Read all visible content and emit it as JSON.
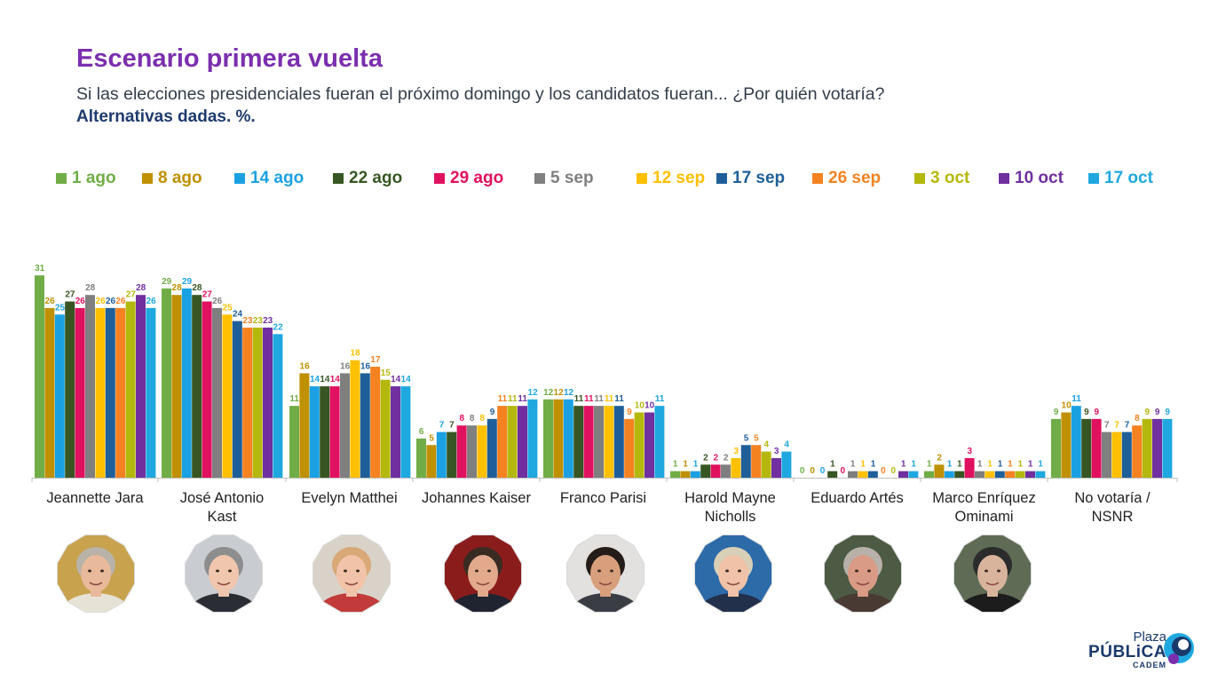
{
  "header": {
    "title": "Escenario primera vuelta",
    "subtitle": "Si las elecciones presidenciales fueran el próximo domingo y los candidatos fueran... ¿Por quién votaría?",
    "note": "Alternativas dadas. %."
  },
  "logo": {
    "line1": "Plaza",
    "line2": "PÚBLiCA",
    "line3": "CADEM"
  },
  "chart_data": {
    "type": "bar",
    "categories": [
      "Jeannette Jara",
      "José Antonio Kast",
      "Evelyn Matthei",
      "Johannes Kaiser",
      "Franco Parisi",
      "Harold Mayne Nicholls",
      "Eduardo Artés",
      "Marco Enríquez Ominami",
      "No votaría / NSNR"
    ],
    "category_lines": [
      [
        "Jeannette Jara"
      ],
      [
        "José Antonio",
        "Kast"
      ],
      [
        "Evelyn Matthei"
      ],
      [
        "Johannes Kaiser"
      ],
      [
        "Franco Parisi"
      ],
      [
        "Harold Mayne",
        "Nicholls"
      ],
      [
        "Eduardo Artés"
      ],
      [
        "Marco Enríquez",
        "Ominami"
      ],
      [
        "No votaría /",
        "NSNR"
      ]
    ],
    "series": [
      {
        "name": "1 ago",
        "color": "#70ad47",
        "values": [
          31,
          29,
          11,
          6,
          12,
          1,
          0,
          1,
          9
        ]
      },
      {
        "name": "8 ago",
        "color": "#bf9000",
        "values": [
          26,
          28,
          16,
          5,
          12,
          1,
          0,
          2,
          10
        ]
      },
      {
        "name": "14 ago",
        "color": "#1ba1e2",
        "values": [
          25,
          29,
          14,
          7,
          12,
          1,
          0,
          1,
          11
        ]
      },
      {
        "name": "22 ago",
        "color": "#375623",
        "values": [
          27,
          28,
          14,
          7,
          11,
          2,
          1,
          1,
          9
        ]
      },
      {
        "name": "29 ago",
        "color": "#e0115f",
        "values": [
          26,
          27,
          14,
          8,
          11,
          2,
          0,
          3,
          9
        ]
      },
      {
        "name": "5 sep",
        "color": "#7f7f7f",
        "values": [
          28,
          26,
          16,
          8,
          11,
          2,
          1,
          1,
          7
        ]
      },
      {
        "name": "12 sep",
        "color": "#ffc000",
        "values": [
          26,
          25,
          18,
          8,
          11,
          3,
          1,
          1,
          7
        ]
      },
      {
        "name": "17 sep",
        "color": "#1f5f99",
        "values": [
          26,
          24,
          16,
          9,
          11,
          5,
          1,
          1,
          7
        ]
      },
      {
        "name": "26 sep",
        "color": "#f58220",
        "values": [
          26,
          23,
          17,
          11,
          9,
          5,
          0,
          1,
          8
        ]
      },
      {
        "name": "3 oct",
        "color": "#b4b80d",
        "values": [
          27,
          23,
          15,
          11,
          10,
          4,
          0,
          1,
          9
        ]
      },
      {
        "name": "10 oct",
        "color": "#7030a0",
        "values": [
          28,
          23,
          14,
          11,
          10,
          3,
          1,
          1,
          9
        ]
      },
      {
        "name": "17 oct",
        "color": "#1fa8e0",
        "values": [
          26,
          22,
          14,
          12,
          11,
          4,
          1,
          1,
          9
        ]
      }
    ],
    "ylim": [
      0,
      32
    ],
    "grid": false,
    "legend_position": "top"
  },
  "photos": [
    {
      "label": "jara-photo",
      "skin": "#e8b99a",
      "hair": "#b8b2a8",
      "bg": "#c9a24e",
      "shirt": "#e7e2d6"
    },
    {
      "label": "kast-photo",
      "skin": "#f0c6ae",
      "hair": "#8d8d8d",
      "bg": "#c9ccd0",
      "shirt": "#2a2d33"
    },
    {
      "label": "matthei-photo",
      "skin": "#f1c3a8",
      "hair": "#d9a877",
      "bg": "#d9d2c8",
      "shirt": "#c23b3b"
    },
    {
      "label": "kaiser-photo",
      "skin": "#e2a98c",
      "hair": "#3a2b22",
      "bg": "#8b1c1c",
      "shirt": "#1f2430"
    },
    {
      "label": "parisi-photo",
      "skin": "#d89f7d",
      "hair": "#241c18",
      "bg": "#e3e1df",
      "shirt": "#3b3d44"
    },
    {
      "label": "mayne-nicholls-photo",
      "skin": "#f0c2a8",
      "hair": "#d8cfb8",
      "bg": "#2c6aa8",
      "shirt": "#23304b"
    },
    {
      "label": "artes-photo",
      "skin": "#d99a86",
      "hair": "#b7b1a9",
      "bg": "#4d5a44",
      "shirt": "#4a3a34"
    },
    {
      "label": "enriquez-ominami-photo",
      "skin": "#d8b49d",
      "hair": "#2b2b2b",
      "bg": "#5f6b55",
      "shirt": "#1c1c1c"
    },
    null
  ]
}
